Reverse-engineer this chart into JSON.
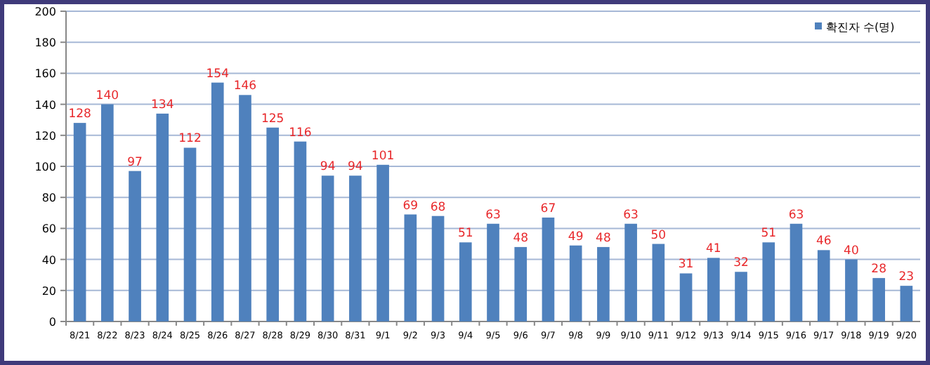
{
  "chart_data": {
    "type": "bar",
    "categories": [
      "8/21",
      "8/22",
      "8/23",
      "8/24",
      "8/25",
      "8/26",
      "8/27",
      "8/28",
      "8/29",
      "8/30",
      "8/31",
      "9/1",
      "9/2",
      "9/3",
      "9/4",
      "9/5",
      "9/6",
      "9/7",
      "9/8",
      "9/9",
      "9/10",
      "9/11",
      "9/12",
      "9/13",
      "9/14",
      "9/15",
      "9/16",
      "9/17",
      "9/18",
      "9/19",
      "9/20"
    ],
    "series": [
      {
        "name": "확진자 수(명)",
        "color": "#4f81bd",
        "values": [
          128,
          140,
          97,
          134,
          112,
          154,
          146,
          125,
          116,
          94,
          94,
          101,
          69,
          68,
          51,
          63,
          48,
          67,
          49,
          48,
          63,
          50,
          31,
          41,
          32,
          51,
          63,
          46,
          40,
          28,
          23
        ]
      }
    ],
    "ylim": [
      0,
      200
    ],
    "yticks": [
      0,
      20,
      40,
      60,
      80,
      100,
      120,
      140,
      160,
      180,
      200
    ],
    "grid": "y",
    "legend": "top right",
    "data_labels": true
  }
}
